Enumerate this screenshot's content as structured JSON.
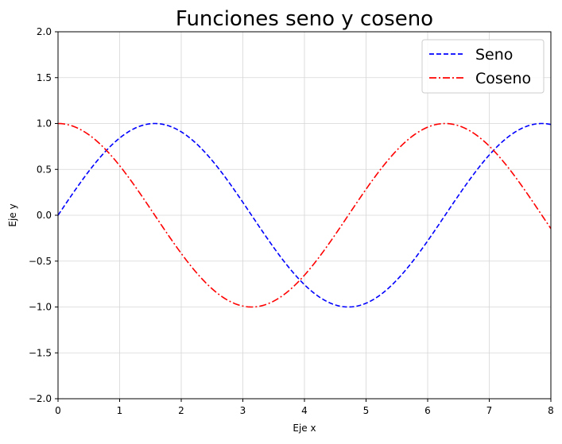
{
  "chart_data": {
    "type": "line",
    "title": "Funciones seno y coseno",
    "xlabel": "Eje x",
    "ylabel": "Eje y",
    "xlim": [
      0,
      8
    ],
    "ylim": [
      -2,
      2
    ],
    "xticks": [
      0,
      1,
      2,
      3,
      4,
      5,
      6,
      7,
      8
    ],
    "xtick_labels": [
      "0",
      "1",
      "2",
      "3",
      "4",
      "5",
      "6",
      "7",
      "8"
    ],
    "yticks": [
      -2.0,
      -1.5,
      -1.0,
      -0.5,
      0.0,
      0.5,
      1.0,
      1.5,
      2.0
    ],
    "ytick_labels": [
      "−2.0",
      "−1.5",
      "−1.0",
      "−0.5",
      "0.0",
      "0.5",
      "1.0",
      "1.5",
      "2.0"
    ],
    "grid": true,
    "legend_position": "top-right",
    "series": [
      {
        "name": "Seno",
        "function": "sin",
        "color": "#0000ff",
        "linestyle": "dashed",
        "x": [
          0,
          0.25,
          0.5,
          0.75,
          1,
          1.25,
          1.5,
          1.57,
          1.75,
          2,
          2.25,
          2.5,
          2.75,
          3,
          3.25,
          3.5,
          3.75,
          4,
          4.25,
          4.5,
          4.71,
          5,
          5.25,
          5.5,
          5.75,
          6,
          6.25,
          6.5,
          6.75,
          7,
          7.25,
          7.5,
          7.75,
          7.85,
          8
        ],
        "y": [
          0,
          0.25,
          0.48,
          0.68,
          0.84,
          0.95,
          1.0,
          1.0,
          0.98,
          0.91,
          0.78,
          0.6,
          0.38,
          0.14,
          -0.11,
          -0.35,
          -0.57,
          -0.76,
          -0.89,
          -0.98,
          -1.0,
          -0.96,
          -0.86,
          -0.71,
          -0.51,
          -0.28,
          -0.03,
          0.22,
          0.45,
          0.66,
          0.82,
          0.94,
          0.99,
          1.0,
          0.99
        ]
      },
      {
        "name": "Coseno",
        "function": "cos",
        "color": "#ff0000",
        "linestyle": "dashdot",
        "x": [
          0,
          0.25,
          0.5,
          0.75,
          1,
          1.25,
          1.5,
          1.75,
          2,
          2.25,
          2.5,
          2.75,
          3,
          3.14,
          3.25,
          3.5,
          3.75,
          4,
          4.25,
          4.5,
          4.75,
          5,
          5.25,
          5.5,
          5.75,
          6,
          6.28,
          6.5,
          6.75,
          7,
          7.25,
          7.5,
          7.75,
          8
        ],
        "y": [
          1.0,
          0.97,
          0.88,
          0.73,
          0.54,
          0.32,
          0.07,
          -0.18,
          -0.42,
          -0.63,
          -0.8,
          -0.92,
          -0.99,
          -1.0,
          -0.99,
          -0.94,
          -0.82,
          -0.65,
          -0.45,
          -0.21,
          0.04,
          0.28,
          0.51,
          0.71,
          0.86,
          0.96,
          1.0,
          0.98,
          0.89,
          0.75,
          0.57,
          0.35,
          0.11,
          -0.15
        ]
      }
    ]
  }
}
